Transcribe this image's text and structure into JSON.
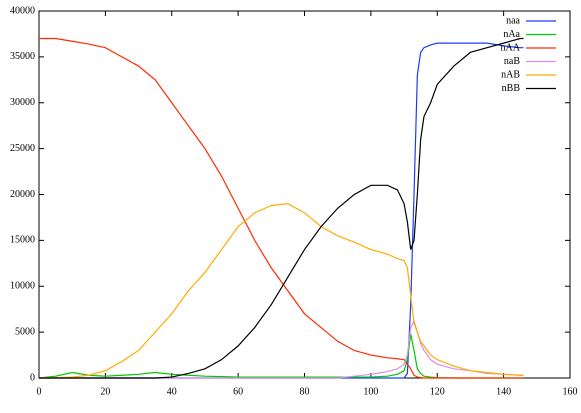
{
  "chart_data": {
    "type": "line",
    "x": [
      0,
      5,
      10,
      15,
      20,
      25,
      30,
      35,
      40,
      45,
      50,
      55,
      60,
      65,
      70,
      75,
      80,
      85,
      90,
      95,
      100,
      105,
      108,
      110,
      111,
      112,
      113,
      114,
      115,
      116,
      118,
      120,
      125,
      130,
      135,
      140,
      145,
      146
    ],
    "series": [
      {
        "name": "naa",
        "color": "#1a3cff",
        "values": [
          0,
          0,
          0,
          0,
          0,
          0,
          0,
          0,
          0,
          0,
          0,
          0,
          0,
          0,
          0,
          0,
          0,
          0,
          0,
          0,
          0,
          0,
          0,
          0,
          500,
          8000,
          20000,
          33000,
          35500,
          36000,
          36300,
          36500,
          36500,
          36500,
          36500,
          36200,
          36000,
          36000
        ]
      },
      {
        "name": "nAa",
        "color": "#00c800",
        "values": [
          0,
          200,
          600,
          300,
          200,
          300,
          400,
          600,
          400,
          300,
          200,
          150,
          100,
          100,
          100,
          100,
          100,
          100,
          100,
          100,
          100,
          200,
          400,
          800,
          2000,
          4800,
          3000,
          1000,
          500,
          200,
          100,
          50,
          0,
          0,
          0,
          0,
          0,
          0
        ]
      },
      {
        "name": "nAA",
        "color": "#ff2a00",
        "values": [
          37000,
          37000,
          36700,
          36400,
          36000,
          35000,
          34000,
          32500,
          30000,
          27500,
          25000,
          22000,
          18500,
          15000,
          12000,
          9500,
          7000,
          5500,
          4000,
          3000,
          2500,
          2200,
          2100,
          2000,
          1500,
          1000,
          300,
          100,
          50,
          0,
          0,
          0,
          0,
          0,
          0,
          0,
          0,
          0
        ]
      },
      {
        "name": "naB",
        "color": "#d890e6",
        "values": [
          0,
          0,
          0,
          0,
          0,
          0,
          0,
          0,
          0,
          0,
          0,
          0,
          0,
          0,
          0,
          0,
          0,
          0,
          0,
          200,
          400,
          700,
          1000,
          1500,
          2500,
          5500,
          6200,
          5000,
          3800,
          3000,
          2000,
          1500,
          1000,
          800,
          500,
          400,
          300,
          300
        ]
      },
      {
        "name": "nAB",
        "color": "#ffaa00",
        "values": [
          0,
          50,
          100,
          300,
          800,
          1800,
          3000,
          5000,
          7000,
          9500,
          11500,
          14000,
          16500,
          18000,
          18800,
          19000,
          18000,
          16500,
          15500,
          14800,
          14000,
          13500,
          13000,
          12800,
          12000,
          9000,
          6000,
          5000,
          4000,
          3500,
          2500,
          2000,
          1300,
          800,
          600,
          400,
          300,
          300
        ]
      },
      {
        "name": "nBB",
        "color": "#000000",
        "values": [
          0,
          0,
          0,
          0,
          0,
          0,
          0,
          0,
          100,
          500,
          1000,
          2000,
          3500,
          5500,
          8000,
          11000,
          14000,
          16500,
          18500,
          20000,
          21000,
          21000,
          20500,
          19000,
          17000,
          14000,
          15000,
          20000,
          26000,
          28500,
          30000,
          32000,
          34000,
          35500,
          36000,
          36500,
          37000,
          37000
        ]
      }
    ],
    "xlim": [
      0,
      160
    ],
    "xticks": [
      0,
      20,
      40,
      60,
      80,
      100,
      120,
      140,
      160
    ],
    "ylim": [
      0,
      40000
    ],
    "yticks": [
      0,
      5000,
      10000,
      15000,
      20000,
      25000,
      30000,
      35000,
      40000
    ],
    "legend": "top-right"
  }
}
